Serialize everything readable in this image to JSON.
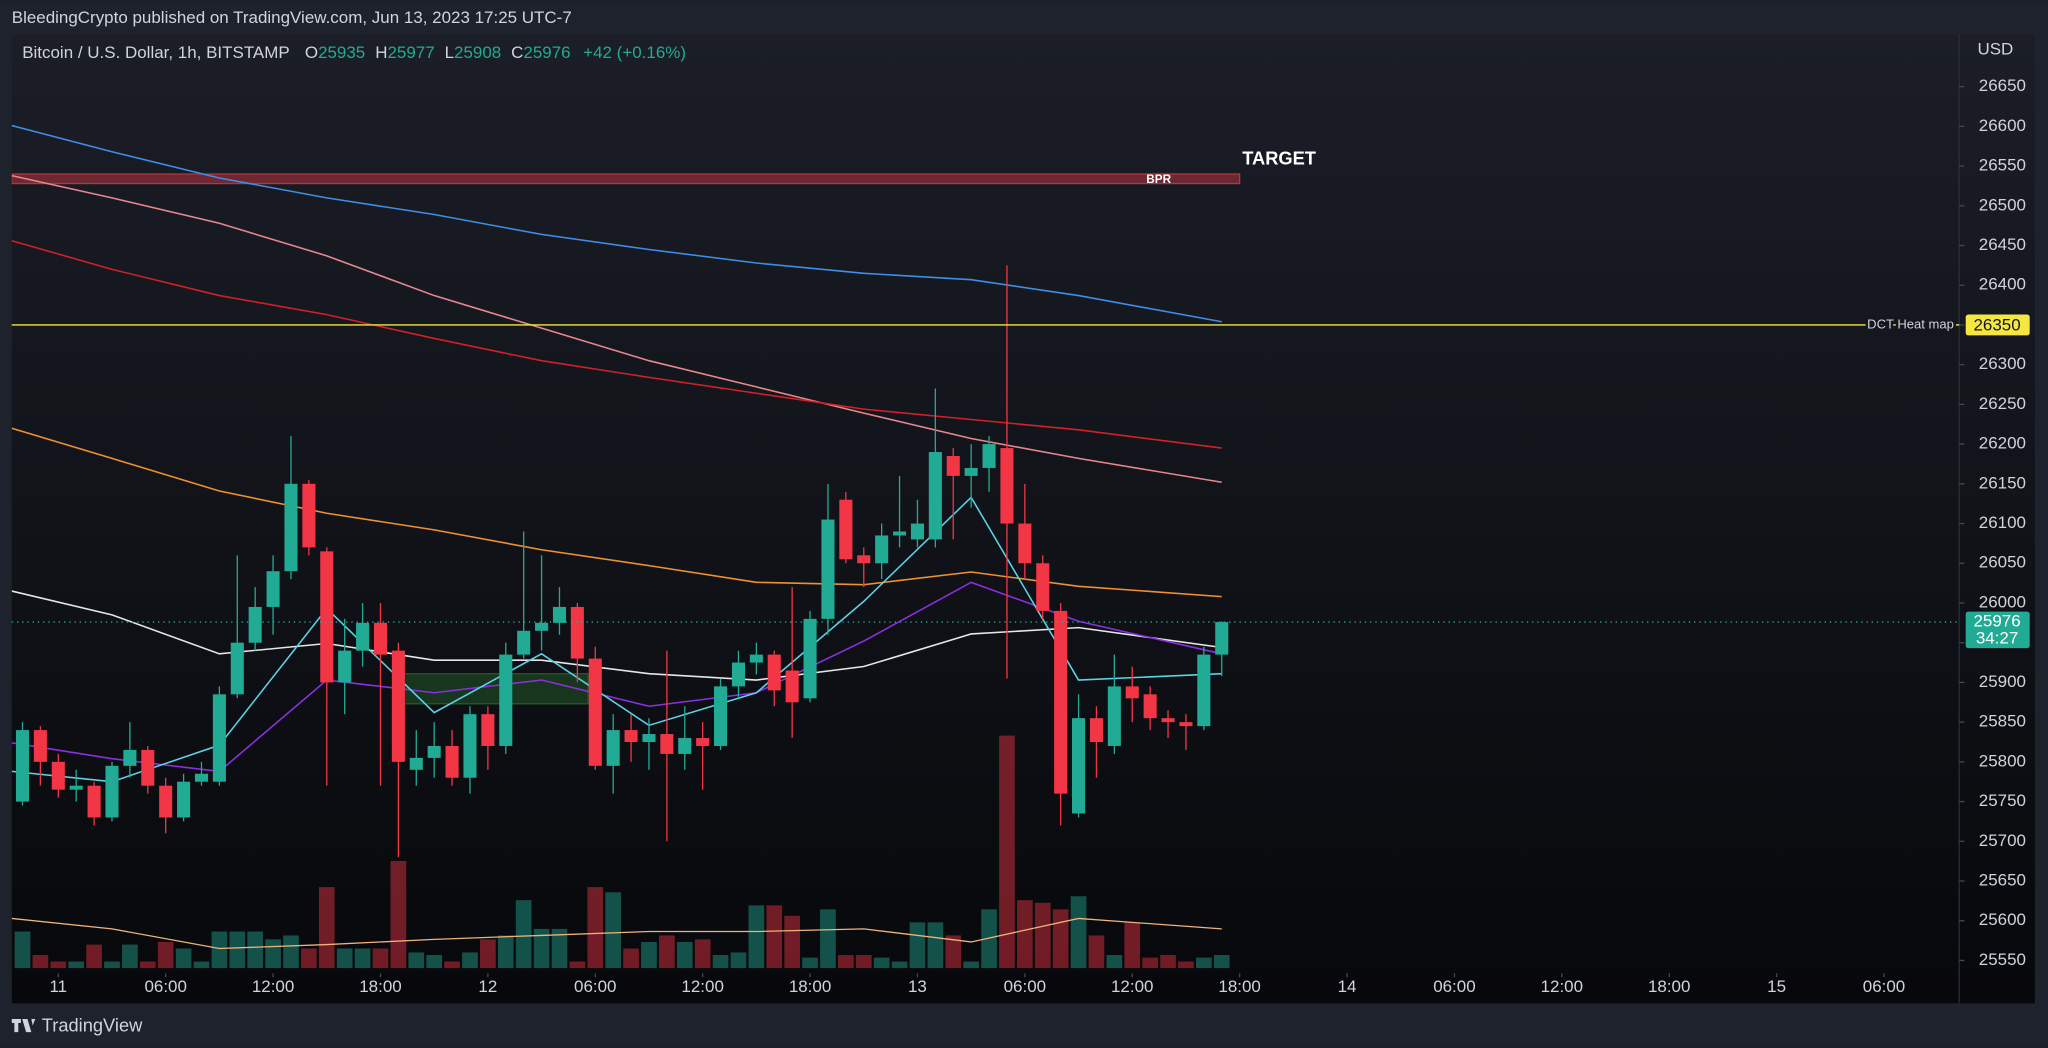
{
  "header": {
    "text": "BleedingCrypto published on TradingView.com, Jun 13, 2023 17:25 UTC-7"
  },
  "footer": {
    "brand": "TradingView"
  },
  "chart_data": {
    "type": "candlestick",
    "legend": {
      "symbol": "Bitcoin / U.S. Dollar, 1h, BITSTAMP",
      "o_label": "O",
      "open": 25935,
      "h_label": "H",
      "high": 25977,
      "l_label": "L",
      "low": 25908,
      "c_label": "C",
      "close": 25976,
      "change": "+42 (+0.16%)"
    },
    "currency": "USD",
    "up_color": "#22ab94",
    "down_color": "#f23645",
    "grid": false,
    "xlim": [
      -2.6,
      106.2
    ],
    "xticks": [
      {
        "value": 0,
        "label": "11"
      },
      {
        "value": 6,
        "label": "06:00"
      },
      {
        "value": 12,
        "label": "12:00"
      },
      {
        "value": 18,
        "label": "18:00"
      },
      {
        "value": 24,
        "label": "12"
      },
      {
        "value": 30,
        "label": "06:00"
      },
      {
        "value": 36,
        "label": "12:00"
      },
      {
        "value": 42,
        "label": "18:00"
      },
      {
        "value": 48,
        "label": "13"
      },
      {
        "value": 54,
        "label": "06:00"
      },
      {
        "value": 60,
        "label": "12:00"
      },
      {
        "value": 66,
        "label": "18:00"
      },
      {
        "value": 72,
        "label": "14"
      },
      {
        "value": 78,
        "label": "06:00"
      },
      {
        "value": 84,
        "label": "12:00"
      },
      {
        "value": 90,
        "label": "18:00"
      },
      {
        "value": 96,
        "label": "15"
      },
      {
        "value": 102,
        "label": "06:00"
      }
    ],
    "ylim": [
      25496,
      26716
    ],
    "yticks": [
      25550,
      25600,
      25650,
      25700,
      25750,
      25800,
      25850,
      25900,
      25950,
      26000,
      26050,
      26100,
      26150,
      26200,
      26250,
      26300,
      26350,
      26400,
      26450,
      26500,
      26550,
      26600,
      26650
    ],
    "x": [
      -2,
      -1,
      0,
      1,
      2,
      3,
      4,
      5,
      6,
      7,
      8,
      9,
      10,
      11,
      12,
      13,
      14,
      15,
      16,
      17,
      18,
      19,
      20,
      21,
      22,
      23,
      24,
      25,
      26,
      27,
      28,
      29,
      30,
      31,
      32,
      33,
      34,
      35,
      36,
      37,
      38,
      39,
      40,
      41,
      42,
      43,
      44,
      45,
      46,
      47,
      48,
      49,
      50,
      51,
      52,
      53,
      54,
      55,
      56,
      57,
      58,
      59,
      60,
      61,
      62,
      63,
      64,
      65
    ],
    "open": [
      25750,
      25840,
      25800,
      25765,
      25770,
      25730,
      25795,
      25815,
      25770,
      25730,
      25775,
      25775,
      25885,
      25950,
      25995,
      26040,
      26150,
      26065,
      25900,
      25940,
      25975,
      25940,
      25790,
      25805,
      25820,
      25780,
      25860,
      25820,
      25935,
      25965,
      25975,
      25995,
      25930,
      25795,
      25840,
      25825,
      25835,
      25810,
      25830,
      25820,
      25895,
      25925,
      25935,
      25915,
      25880,
      25980,
      26130,
      26060,
      26050,
      26085,
      26080,
      26080,
      26185,
      26160,
      26170,
      26195,
      26100,
      26050,
      25990,
      25735,
      25855,
      25820,
      25895,
      25885,
      25855,
      25850,
      25845,
      25935
    ],
    "high": [
      25850,
      25845,
      25810,
      25790,
      25775,
      25800,
      25850,
      25820,
      25780,
      25785,
      25800,
      25895,
      26060,
      26020,
      26060,
      26210,
      26155,
      26070,
      25980,
      26000,
      26000,
      25950,
      25840,
      25850,
      25840,
      25870,
      25870,
      25950,
      26090,
      26060,
      26020,
      26000,
      25945,
      25860,
      25860,
      25855,
      25940,
      25870,
      25850,
      25905,
      25940,
      25950,
      25940,
      26020,
      25990,
      26150,
      26140,
      26070,
      26100,
      26160,
      26130,
      26270,
      26195,
      26200,
      26210,
      26425,
      26150,
      26060,
      26000,
      25885,
      25870,
      25935,
      25920,
      25895,
      25865,
      25860,
      25945,
      25977
    ],
    "low": [
      25745,
      25770,
      25755,
      25750,
      25720,
      25725,
      25780,
      25760,
      25710,
      25725,
      25770,
      25770,
      25880,
      25940,
      25960,
      26030,
      26060,
      25770,
      25860,
      25920,
      25770,
      25680,
      25770,
      25780,
      25770,
      25760,
      25790,
      25810,
      25930,
      25940,
      25960,
      25900,
      25790,
      25760,
      25800,
      25790,
      25700,
      25790,
      25765,
      25815,
      25880,
      25910,
      25870,
      25830,
      25875,
      25960,
      26050,
      26020,
      26030,
      26070,
      26070,
      26070,
      26080,
      26120,
      26140,
      25905,
      26030,
      25980,
      25720,
      25730,
      25780,
      25810,
      25850,
      25840,
      25830,
      25815,
      25840,
      25908
    ],
    "close": [
      25840,
      25800,
      25765,
      25770,
      25730,
      25795,
      25815,
      25770,
      25730,
      25775,
      25785,
      25885,
      25950,
      25995,
      26040,
      26150,
      26070,
      25900,
      25940,
      25975,
      25935,
      25800,
      25805,
      25820,
      25780,
      25860,
      25820,
      25935,
      25965,
      25975,
      25995,
      25930,
      25795,
      25840,
      25825,
      25835,
      25810,
      25830,
      25820,
      25895,
      25925,
      25935,
      25890,
      25875,
      25980,
      26105,
      26055,
      26050,
      26085,
      26090,
      26100,
      26190,
      26160,
      26170,
      26200,
      26100,
      26050,
      25990,
      25760,
      25855,
      25825,
      25895,
      25880,
      25855,
      25850,
      25845,
      25935,
      25976
    ],
    "volume": [
      28,
      10,
      5,
      5,
      18,
      5,
      18,
      5,
      20,
      15,
      5,
      28,
      28,
      28,
      22,
      25,
      15,
      62,
      15,
      15,
      15,
      82,
      12,
      10,
      5,
      12,
      22,
      25,
      52,
      30,
      30,
      5,
      62,
      58,
      15,
      20,
      25,
      20,
      22,
      10,
      12,
      48,
      48,
      40,
      8,
      45,
      10,
      10,
      8,
      5,
      35,
      35,
      25,
      5,
      45,
      178,
      52,
      50,
      45,
      55,
      25,
      10,
      35,
      8,
      10,
      5,
      8,
      10
    ],
    "overlay_x": [
      -2.6,
      3,
      9,
      15,
      21,
      27,
      33,
      39,
      45,
      51,
      57,
      65
    ],
    "overlays": [
      {
        "color": "#3d8ee8",
        "values": [
          26601,
          26568,
          26535,
          26510,
          26489,
          26464,
          26445,
          26428,
          26415,
          26407,
          26387,
          26354
        ]
      },
      {
        "color": "#e8868d",
        "values": [
          26538,
          26510,
          26478,
          26437,
          26387,
          26346,
          26305,
          26272,
          26239,
          26207,
          26182,
          26152
        ]
      },
      {
        "color": "#d32027",
        "values": [
          26456,
          26420,
          26387,
          26363,
          26333,
          26305,
          26284,
          26264,
          26244,
          26231,
          26218,
          26195
        ]
      },
      {
        "color": "#f0912f",
        "values": [
          26220,
          26182,
          26141,
          26113,
          26092,
          26067,
          26047,
          26026,
          26023,
          26039,
          26021,
          26008
        ]
      },
      {
        "color": "#e6e6e6",
        "values": [
          26015,
          25985,
          25936,
          25949,
          25928,
          25928,
          25911,
          25903,
          25920,
          25961,
          25969,
          25944
        ]
      },
      {
        "color": "#8c2fe0",
        "values": [
          25824,
          25804,
          25788,
          25903,
          25887,
          25903,
          25870,
          25887,
          25952,
          26026,
          25977,
          25936
        ]
      },
      {
        "color": "#5ad4e6",
        "values": [
          25788,
          25775,
          25821,
          25993,
          25862,
          25936,
          25846,
          25887,
          26002,
          26133,
          25903,
          25911
        ]
      }
    ],
    "volume_ma": {
      "color": "#f0b27a",
      "values": [
        38,
        30,
        15,
        18,
        22,
        25,
        28,
        28,
        30,
        20,
        38,
        30
      ]
    },
    "bpr_zone": {
      "label": "BPR",
      "low": 26528,
      "high": 26540,
      "x": [
        -2.6,
        66
      ],
      "color": "#b2353f"
    },
    "target": {
      "label": "TARGET"
    },
    "level_line": {
      "label": "DCT Heat map",
      "value": 26350,
      "color": "#f5e642"
    },
    "fvg_zone": {
      "low": 25873,
      "high": 25911,
      "x": [
        19.3,
        29.6
      ],
      "color": "#2e7d32"
    },
    "last_price": {
      "value": 25976,
      "countdown": "34:27"
    }
  }
}
